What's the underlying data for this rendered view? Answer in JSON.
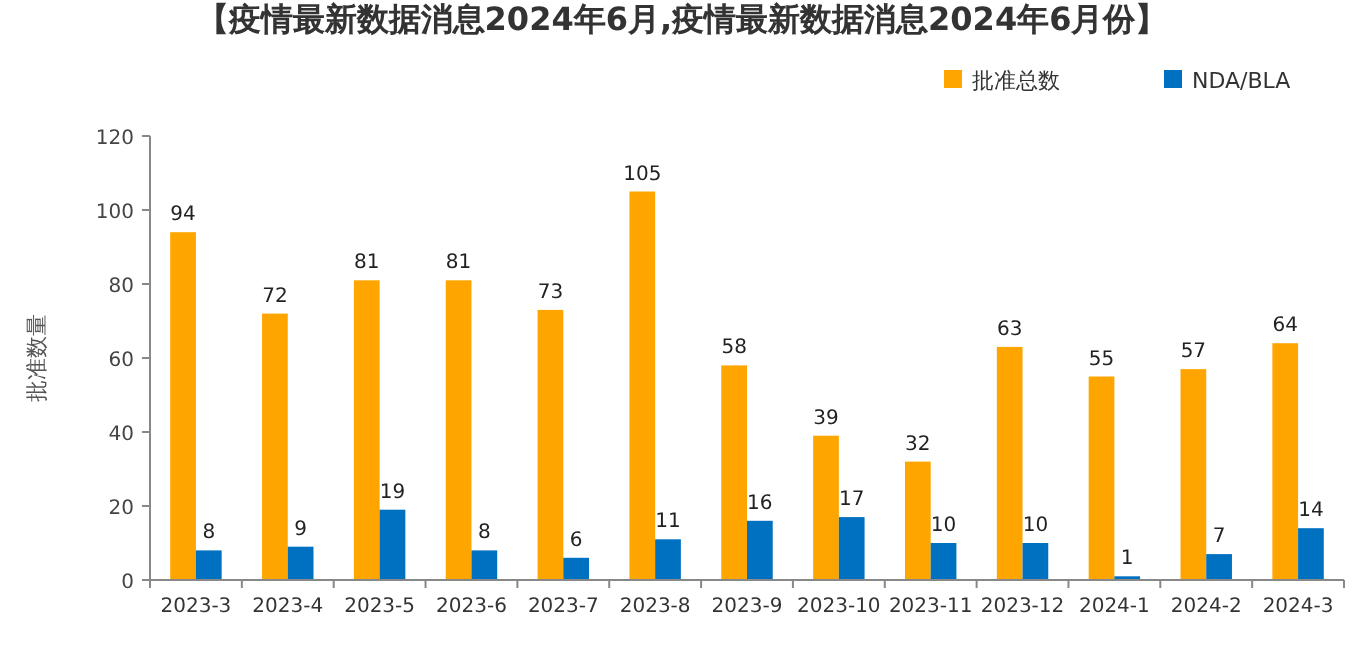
{
  "chart_data": {
    "type": "bar",
    "title": "【疫情最新数据消息2024年6月,疫情最新数据消息2024年6月份】",
    "ylabel": "批准数量",
    "categories": [
      "2023-3",
      "2023-4",
      "2023-5",
      "2023-6",
      "2023-7",
      "2023-8",
      "2023-9",
      "2023-10",
      "2023-11",
      "2023-12",
      "2024-1",
      "2024-2",
      "2024-3"
    ],
    "series": [
      {
        "name": "批准总数",
        "color": "#ffa500",
        "values": [
          94,
          72,
          81,
          81,
          73,
          105,
          58,
          39,
          32,
          63,
          55,
          57,
          64
        ]
      },
      {
        "name": "NDA/BLA",
        "color": "#0070c0",
        "values": [
          8,
          9,
          19,
          8,
          6,
          11,
          16,
          17,
          10,
          10,
          1,
          7,
          14
        ]
      }
    ],
    "ylim": [
      0,
      120
    ],
    "yticks": [
      0,
      20,
      40,
      60,
      80,
      100,
      120
    ],
    "data_labels": true,
    "legend": "top right",
    "grid": false
  }
}
